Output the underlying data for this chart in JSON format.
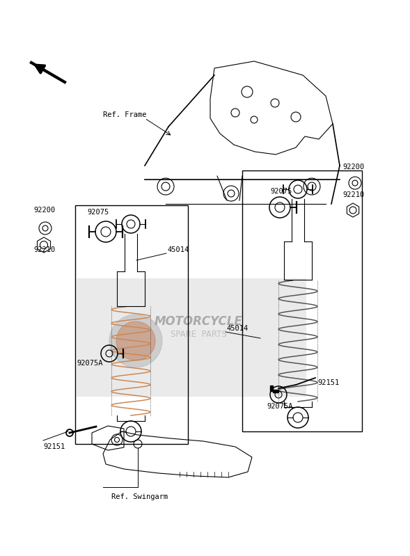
{
  "bg_color": "#ffffff",
  "line_color": "#000000",
  "watermark_text1": "MOTORCYCLE",
  "watermark_text2": "SPARE  PARTS",
  "ref_frame_label": "Ref. Frame",
  "ref_swingarm_label": "Ref. Swingarm",
  "spring_color_left": "#cc8855",
  "spring_color_right": "#555555",
  "watermark_bg": "#cccccc",
  "watermark_alpha": 0.4,
  "lw": 0.8
}
